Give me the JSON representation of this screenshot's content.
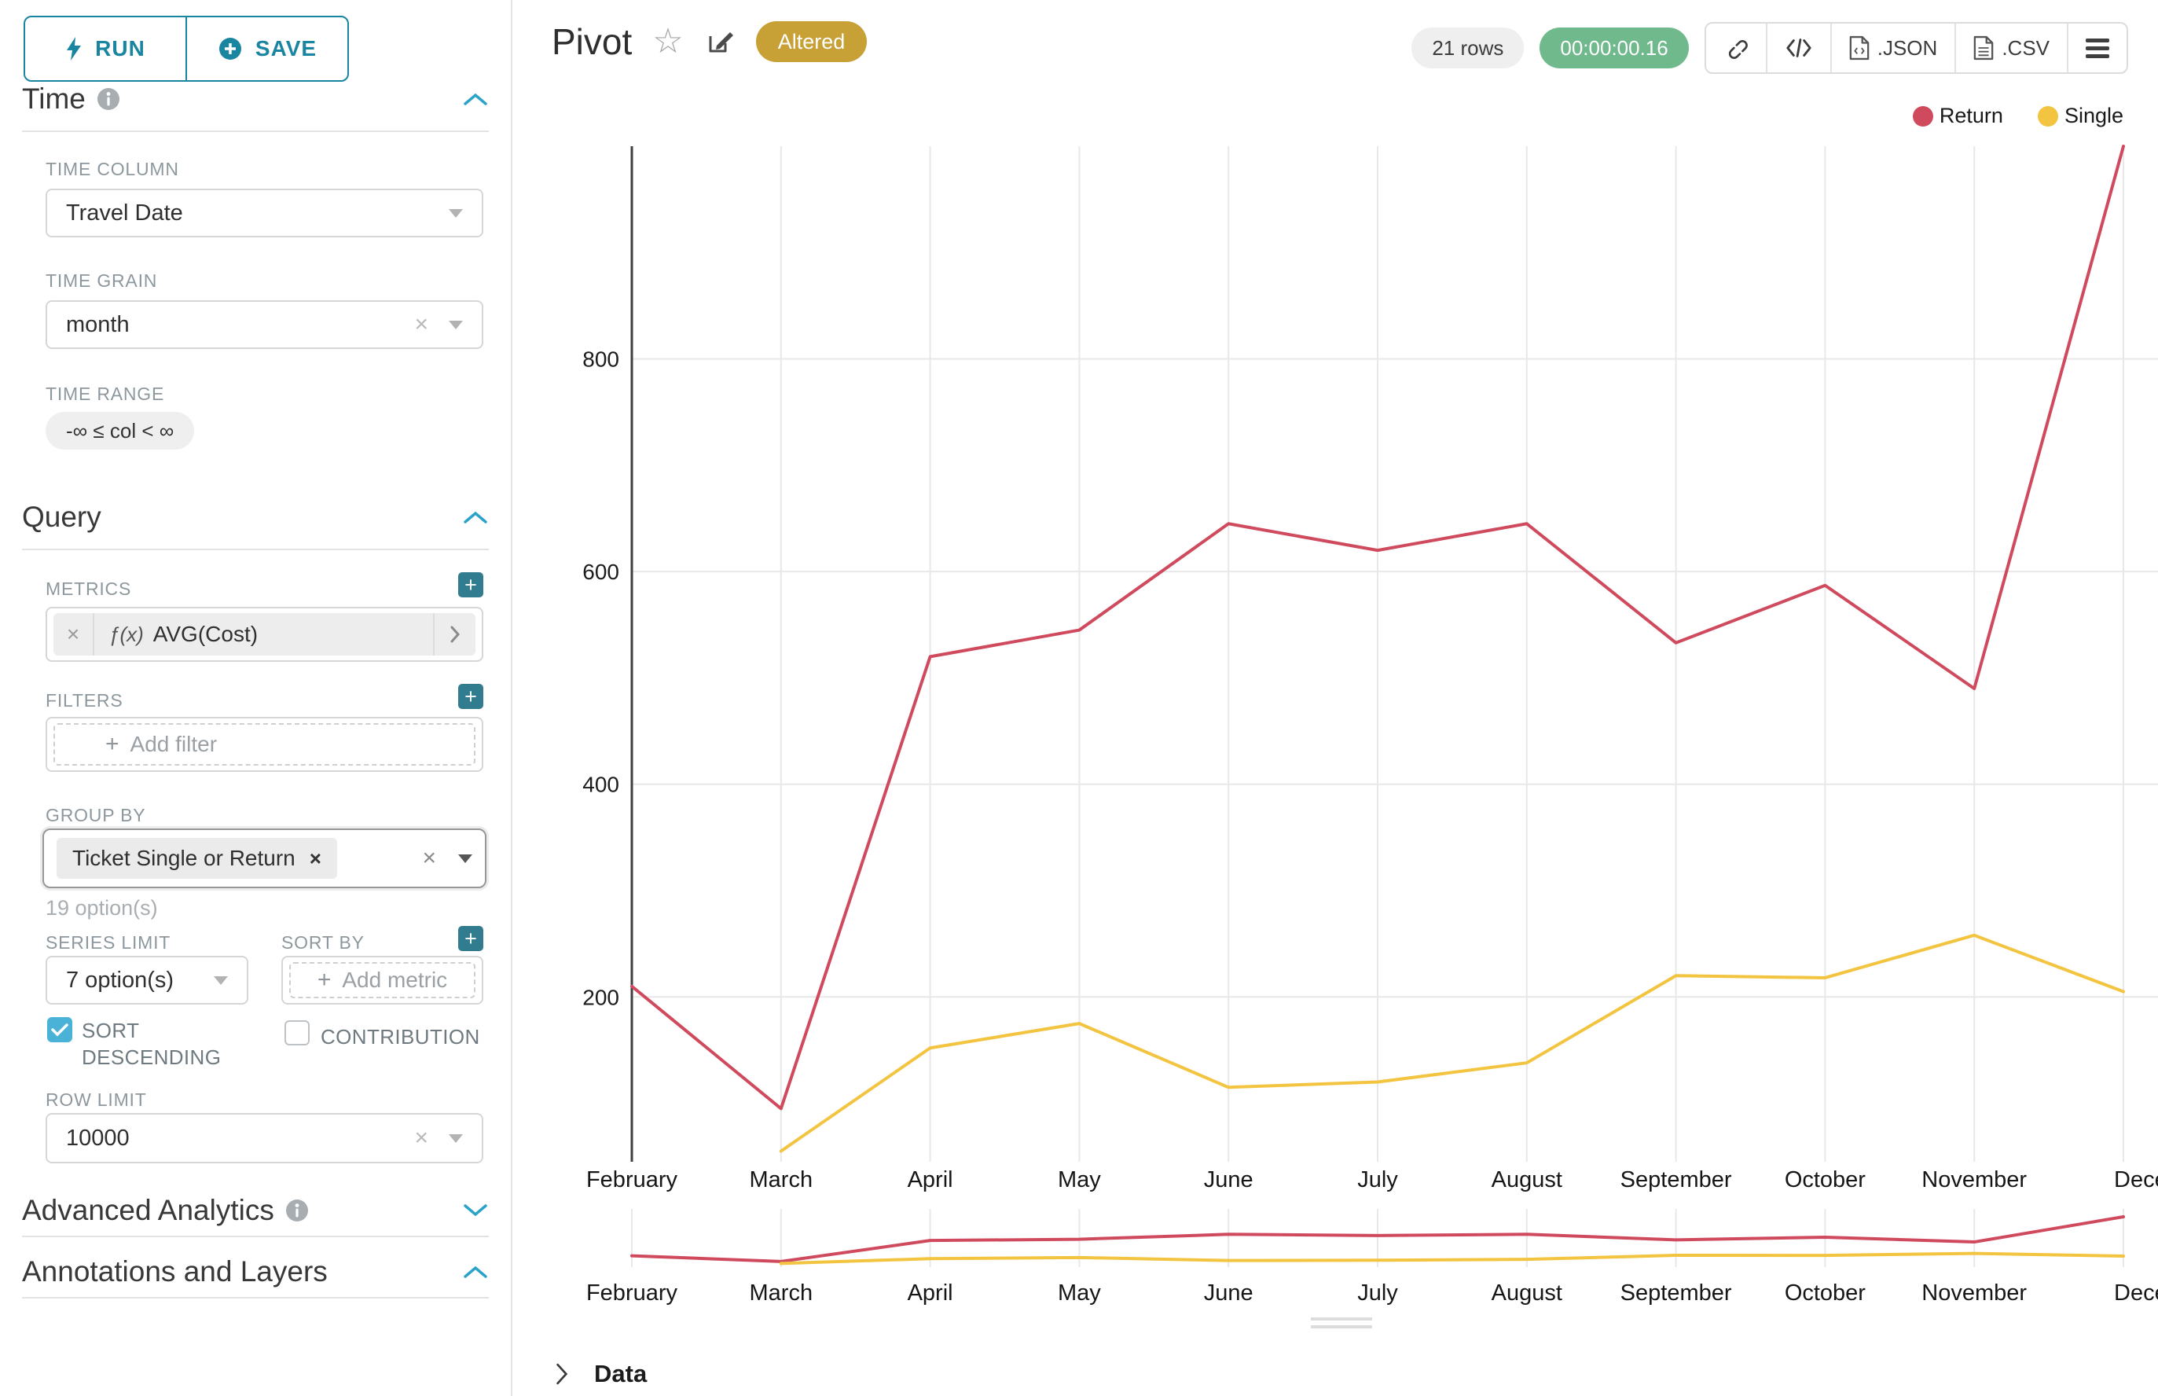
{
  "header": {
    "title": "Pivot",
    "altered_badge": "Altered",
    "rows_badge": "21 rows",
    "duration_badge": "00:00:00.16",
    "export_json": ".JSON",
    "export_csv": ".CSV"
  },
  "sidebar": {
    "run_label": "RUN",
    "save_label": "SAVE",
    "time": {
      "title": "Time",
      "time_column_label": "TIME COLUMN",
      "time_column_value": "Travel Date",
      "time_grain_label": "TIME GRAIN",
      "time_grain_value": "month",
      "time_range_label": "TIME RANGE",
      "time_range_value": "-∞ ≤ col < ∞"
    },
    "query": {
      "title": "Query",
      "metrics_label": "METRICS",
      "metric_function_prefix": "ƒ(x)",
      "metric_name": "AVG(Cost)",
      "filters_label": "FILTERS",
      "add_filter_placeholder": "Add filter",
      "group_by_label": "GROUP BY",
      "group_by_value": "Ticket Single or Return",
      "group_by_hint": "19 option(s)",
      "series_limit_label": "SERIES LIMIT",
      "series_limit_value": "7 option(s)",
      "sort_by_label": "SORT BY",
      "add_metric_placeholder": "Add metric",
      "sort_descending_label": "SORT DESCENDING",
      "sort_descending_checked": true,
      "contribution_label": "CONTRIBUTION",
      "contribution_checked": false,
      "row_limit_label": "ROW LIMIT",
      "row_limit_value": "10000"
    },
    "advanced_analytics_title": "Advanced Analytics",
    "annotations_title": "Annotations and Layers"
  },
  "data_panel": {
    "label": "Data"
  },
  "chart_data": {
    "type": "line",
    "title": "Pivot",
    "x_categories": [
      "February",
      "March",
      "April",
      "May",
      "June",
      "July",
      "August",
      "September",
      "October",
      "November",
      "December"
    ],
    "last_x_label_clipped": true,
    "series": [
      {
        "name": "Return",
        "color": "#d04a5e",
        "values": [
          210,
          95,
          520,
          545,
          645,
          620,
          645,
          533,
          587,
          490,
          1000
        ]
      },
      {
        "name": "Single",
        "color": "#f3c440",
        "values": [
          null,
          55,
          152,
          175,
          115,
          120,
          138,
          220,
          218,
          258,
          205
        ]
      }
    ],
    "yticks": [
      200,
      400,
      600,
      800
    ],
    "ylim": [
      45,
      1000
    ],
    "grid": true,
    "legend_position": "top-right",
    "has_overview_mini_chart": true
  }
}
